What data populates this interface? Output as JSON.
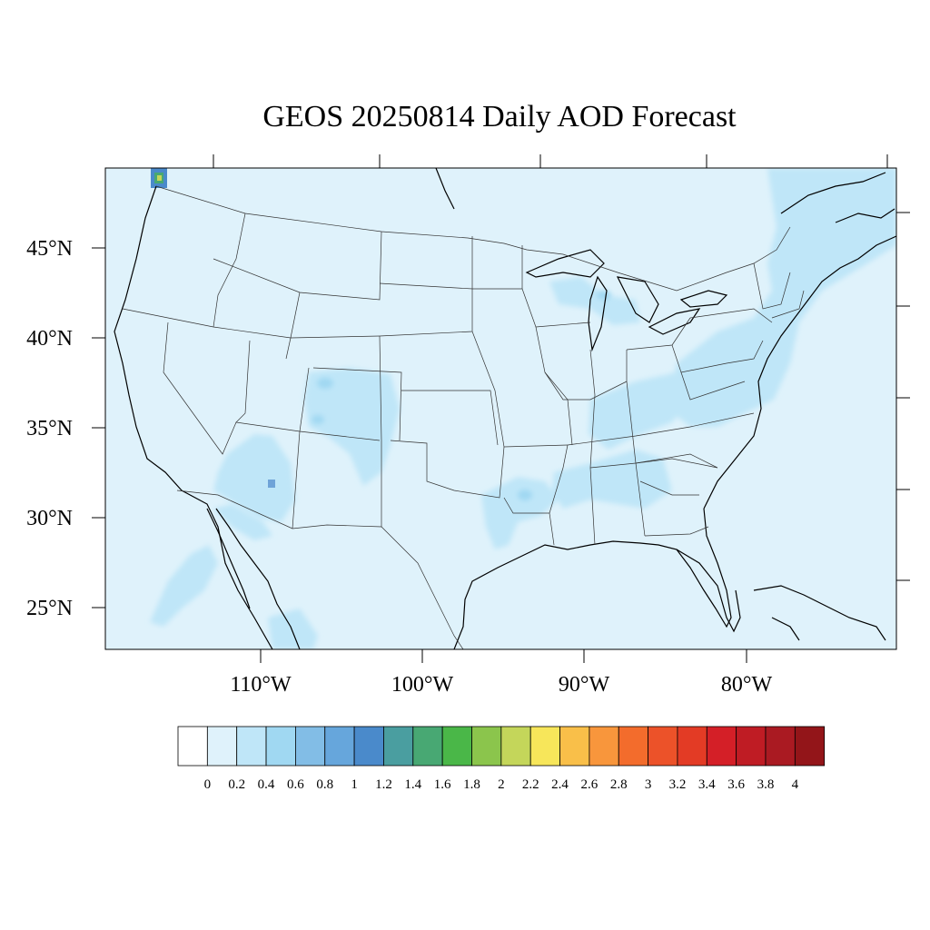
{
  "title": "GEOS 20250814 Daily AOD Forecast",
  "map": {
    "region": "Contiguous United States",
    "field": "AOD",
    "background_color": "#dff2fb",
    "lat_labels": [
      "45°N",
      "40°N",
      "35°N",
      "30°N",
      "25°N"
    ],
    "lon_labels": [
      "110°W",
      "100°W",
      "90°W",
      "80°W"
    ],
    "plumes": [
      {
        "area": "Northern Appalachians to New England",
        "level": "0.2–0.4"
      },
      {
        "area": "Ohio Valley / Kentucky–Tennessee",
        "level": "0.2–0.4"
      },
      {
        "area": "Colorado / New Mexico",
        "level": "0.2–0.4"
      },
      {
        "area": "Arizona",
        "level": "0.2–0.6"
      },
      {
        "area": "Louisiana / Gulf coast",
        "level": "0.2–0.4"
      },
      {
        "area": "Pacific Northwest (Washington)",
        "level": "up to 2.2"
      }
    ]
  },
  "colorbar": {
    "colors": [
      "#ffffff",
      "#dff2fb",
      "#bfe6f8",
      "#a0d8f2",
      "#82bde6",
      "#66a6dc",
      "#4a8acb",
      "#4a9ea0",
      "#48a873",
      "#4ab748",
      "#8bc54c",
      "#c4d65a",
      "#f7e65a",
      "#f9bf49",
      "#f8963c",
      "#f36c2c",
      "#ec5229",
      "#e33b25",
      "#d41f27",
      "#bf1c24",
      "#aa1a22",
      "#931519"
    ],
    "labels": [
      "0",
      "0.2",
      "0.4",
      "0.6",
      "0.8",
      "1",
      "1.2",
      "1.4",
      "1.6",
      "1.8",
      "2",
      "2.2",
      "2.4",
      "2.6",
      "2.8",
      "3",
      "3.2",
      "3.4",
      "3.6",
      "3.8",
      "4"
    ]
  }
}
